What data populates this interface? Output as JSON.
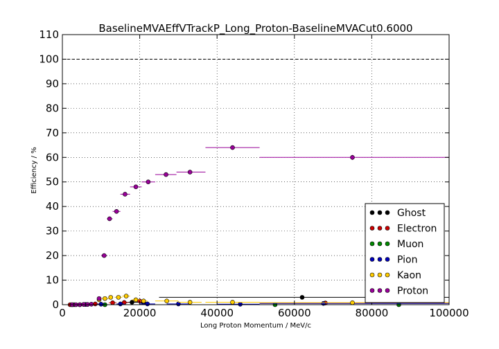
{
  "chart_data": {
    "type": "scatter",
    "title": "BaselineMVAEffVTrackP_Long_Proton-BaselineMVACut0.6000",
    "xlabel": "Long Proton Momentum / MeV/c",
    "ylabel": "Efficiency / %",
    "xlim": [
      0,
      100000
    ],
    "ylim": [
      0,
      110
    ],
    "xticks": [
      0,
      20000,
      40000,
      60000,
      80000,
      100000
    ],
    "xtick_labels": [
      "0",
      "20000",
      "40000",
      "60000",
      "80000",
      "100000"
    ],
    "yticks": [
      0,
      10,
      20,
      30,
      40,
      50,
      60,
      70,
      80,
      90,
      100,
      110
    ],
    "ytick_labels": [
      "0",
      "10",
      "20",
      "30",
      "40",
      "50",
      "60",
      "70",
      "80",
      "90",
      "100",
      "110"
    ],
    "grid": true,
    "reference_line_y": 100,
    "legend_position": "lower-right",
    "series": [
      {
        "name": "Ghost",
        "color": "#000000",
        "points": [
          {
            "x": 62000,
            "y": 3.0,
            "xlo": 25000,
            "xhi": 100000,
            "yerr": 0.3
          },
          {
            "x": 18000,
            "y": 1.0,
            "xlo": 16000,
            "xhi": 20000,
            "yerr": 0.3
          },
          {
            "x": 21000,
            "y": 0.8,
            "xlo": 20000,
            "xhi": 22000,
            "yerr": 0.3
          }
        ]
      },
      {
        "name": "Electron",
        "color": "#cc0000",
        "points": [
          {
            "x": 2000,
            "y": 0.0,
            "xlo": 1000,
            "xhi": 3000,
            "yerr": 0.2
          },
          {
            "x": 4500,
            "y": 0.0,
            "xlo": 3500,
            "xhi": 5500,
            "yerr": 0.2
          },
          {
            "x": 8500,
            "y": 0.3,
            "xlo": 7500,
            "xhi": 9500,
            "yerr": 0.2
          },
          {
            "x": 13000,
            "y": 0.8,
            "xlo": 12000,
            "xhi": 14000,
            "yerr": 0.3
          },
          {
            "x": 16000,
            "y": 0.9,
            "xlo": 15000,
            "xhi": 17000,
            "yerr": 0.3
          },
          {
            "x": 20000,
            "y": 1.5,
            "xlo": 19000,
            "xhi": 21000,
            "yerr": 0.3
          },
          {
            "x": 68000,
            "y": 0.7,
            "xlo": 51000,
            "xhi": 100000,
            "yerr": 0.2
          }
        ]
      },
      {
        "name": "Muon",
        "color": "#008800",
        "points": [
          {
            "x": 3000,
            "y": 0.0,
            "xlo": 2000,
            "xhi": 4000,
            "yerr": 0.2
          },
          {
            "x": 11000,
            "y": 0.0,
            "xlo": 10000,
            "xhi": 12000,
            "yerr": 0.2
          },
          {
            "x": 55000,
            "y": 0.0,
            "xlo": 44000,
            "xhi": 66000,
            "yerr": 0.2
          },
          {
            "x": 87000,
            "y": 0.0,
            "xlo": 70000,
            "xhi": 100000,
            "yerr": 0.2
          }
        ]
      },
      {
        "name": "Pion",
        "color": "#0000bb",
        "points": [
          {
            "x": 2500,
            "y": 0.0,
            "xlo": 1500,
            "xhi": 3500,
            "yerr": 0.2
          },
          {
            "x": 6000,
            "y": 0.1,
            "xlo": 5000,
            "xhi": 7000,
            "yerr": 0.2
          },
          {
            "x": 10000,
            "y": 0.2,
            "xlo": 9000,
            "xhi": 11000,
            "yerr": 0.2
          },
          {
            "x": 15000,
            "y": 0.3,
            "xlo": 14000,
            "xhi": 16000,
            "yerr": 0.2
          },
          {
            "x": 22000,
            "y": 0.3,
            "xlo": 20000,
            "xhi": 24000,
            "yerr": 0.2
          },
          {
            "x": 30000,
            "y": 0.3,
            "xlo": 27000,
            "xhi": 33000,
            "yerr": 0.2
          },
          {
            "x": 46000,
            "y": 0.2,
            "xlo": 40000,
            "xhi": 51000,
            "yerr": 0.2
          },
          {
            "x": 67500,
            "y": 0.5,
            "xlo": 51000,
            "xhi": 100000,
            "yerr": 0.2
          }
        ]
      },
      {
        "name": "Kaon",
        "color": "#ffcc00",
        "points": [
          {
            "x": 9500,
            "y": 2.0,
            "xlo": 9000,
            "xhi": 10000,
            "yerr": 0.4
          },
          {
            "x": 11000,
            "y": 2.5,
            "xlo": 10000,
            "xhi": 12000,
            "yerr": 0.4
          },
          {
            "x": 12500,
            "y": 3.0,
            "xlo": 12000,
            "xhi": 13000,
            "yerr": 0.4
          },
          {
            "x": 14500,
            "y": 3.0,
            "xlo": 13500,
            "xhi": 15500,
            "yerr": 0.4
          },
          {
            "x": 16500,
            "y": 3.5,
            "xlo": 15500,
            "xhi": 17500,
            "yerr": 0.4
          },
          {
            "x": 19000,
            "y": 2.0,
            "xlo": 18000,
            "xhi": 20000,
            "yerr": 0.4
          },
          {
            "x": 21000,
            "y": 1.5,
            "xlo": 20000,
            "xhi": 22000,
            "yerr": 0.4
          },
          {
            "x": 27000,
            "y": 1.5,
            "xlo": 24000,
            "xhi": 30000,
            "yerr": 0.4
          },
          {
            "x": 33000,
            "y": 1.0,
            "xlo": 30000,
            "xhi": 36000,
            "yerr": 0.4
          },
          {
            "x": 44000,
            "y": 1.0,
            "xlo": 37000,
            "xhi": 51000,
            "yerr": 0.3
          },
          {
            "x": 75000,
            "y": 0.8,
            "xlo": 51000,
            "xhi": 100000,
            "yerr": 0.3
          }
        ]
      },
      {
        "name": "Proton",
        "color": "#990099",
        "points": [
          {
            "x": 2500,
            "y": 0.0,
            "xlo": 2000,
            "xhi": 3000,
            "yerr": 0.2
          },
          {
            "x": 3500,
            "y": 0.0,
            "xlo": 3000,
            "xhi": 4000,
            "yerr": 0.2
          },
          {
            "x": 4500,
            "y": 0.0,
            "xlo": 4000,
            "xhi": 5000,
            "yerr": 0.2
          },
          {
            "x": 5500,
            "y": 0.1,
            "xlo": 5000,
            "xhi": 6000,
            "yerr": 0.2
          },
          {
            "x": 6500,
            "y": 0.1,
            "xlo": 6000,
            "xhi": 7000,
            "yerr": 0.2
          },
          {
            "x": 7500,
            "y": 0.2,
            "xlo": 7000,
            "xhi": 8000,
            "yerr": 0.2
          },
          {
            "x": 9500,
            "y": 2.5,
            "xlo": 9000,
            "xhi": 10000,
            "yerr": 0.4
          },
          {
            "x": 10800,
            "y": 20,
            "xlo": 10000,
            "xhi": 11500,
            "yerr": 0.5
          },
          {
            "x": 12200,
            "y": 35,
            "xlo": 11500,
            "xhi": 13000,
            "yerr": 0.8
          },
          {
            "x": 14000,
            "y": 38,
            "xlo": 13000,
            "xhi": 15000,
            "yerr": 0.8
          },
          {
            "x": 16200,
            "y": 45,
            "xlo": 15000,
            "xhi": 17500,
            "yerr": 0.8
          },
          {
            "x": 19000,
            "y": 48,
            "xlo": 17500,
            "xhi": 20500,
            "yerr": 0.8
          },
          {
            "x": 22200,
            "y": 50,
            "xlo": 20500,
            "xhi": 24000,
            "yerr": 0.8
          },
          {
            "x": 26800,
            "y": 53,
            "xlo": 24000,
            "xhi": 29500,
            "yerr": 0.9
          },
          {
            "x": 33000,
            "y": 54,
            "xlo": 29500,
            "xhi": 37000,
            "yerr": 0.9
          },
          {
            "x": 44000,
            "y": 64,
            "xlo": 37000,
            "xhi": 51000,
            "yerr": 0.9
          },
          {
            "x": 75000,
            "y": 60,
            "xlo": 51000,
            "xhi": 100000,
            "yerr": 1.0
          }
        ]
      }
    ]
  }
}
